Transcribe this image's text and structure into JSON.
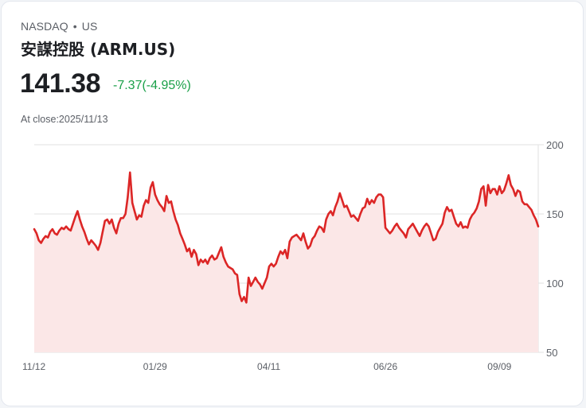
{
  "header": {
    "exchange": "NASDAQ",
    "separator": "•",
    "region": "US",
    "title": "安謀控股 (ARM.US)"
  },
  "quote": {
    "price": "141.38",
    "change": "-7.37(-4.95%)",
    "change_color": "#1aa049",
    "close_label": "At close:2025/11/13"
  },
  "colors": {
    "line": "#dc2626",
    "fill": "#fbe7e7",
    "grid": "#e2e2e2"
  },
  "chart_data": {
    "type": "area",
    "title": "ARM.US 1Y price",
    "xlabel": "",
    "ylabel": "",
    "ylim": [
      50,
      200
    ],
    "yticks": [
      200,
      150,
      100,
      50
    ],
    "xtick_labels": [
      "11/12",
      "01/29",
      "04/11",
      "06/26",
      "09/09"
    ],
    "xtick_index": [
      0,
      53,
      103,
      154,
      204
    ],
    "grid": true,
    "legend": "none",
    "series": [
      {
        "name": "ARM.US",
        "values": [
          139,
          136,
          131,
          129,
          132,
          134,
          133,
          137,
          139,
          136,
          135,
          138,
          140,
          139,
          141,
          139,
          138,
          143,
          148,
          152,
          146,
          141,
          137,
          132,
          128,
          131,
          129,
          127,
          124,
          129,
          137,
          145,
          146,
          143,
          146,
          140,
          136,
          143,
          147,
          147,
          150,
          162,
          180,
          158,
          152,
          146,
          149,
          148,
          156,
          160,
          158,
          169,
          173,
          164,
          160,
          157,
          155,
          152,
          163,
          158,
          159,
          152,
          146,
          142,
          136,
          132,
          128,
          123,
          125,
          119,
          124,
          121,
          113,
          117,
          115,
          117,
          114,
          118,
          120,
          117,
          118,
          122,
          126,
          119,
          115,
          112,
          111,
          110,
          107,
          106,
          92,
          87,
          90,
          86,
          104,
          98,
          101,
          104,
          101,
          99,
          96,
          100,
          104,
          112,
          114,
          112,
          114,
          119,
          123,
          121,
          124,
          118,
          130,
          133,
          134,
          135,
          133,
          131,
          136,
          130,
          125,
          127,
          132,
          134,
          138,
          141,
          140,
          137,
          146,
          150,
          152,
          149,
          155,
          159,
          165,
          160,
          155,
          156,
          152,
          148,
          149,
          147,
          145,
          150,
          154,
          155,
          161,
          157,
          160,
          158,
          162,
          164,
          164,
          162,
          140,
          138,
          136,
          138,
          141,
          143,
          140,
          138,
          136,
          133,
          139,
          141,
          143,
          140,
          137,
          134,
          138,
          141,
          143,
          141,
          136,
          131,
          132,
          137,
          140,
          143,
          151,
          155,
          152,
          153,
          148,
          143,
          141,
          144,
          140,
          141,
          140,
          146,
          149,
          151,
          154,
          159,
          168,
          170,
          156,
          171,
          165,
          168,
          168,
          164,
          170,
          165,
          167,
          172,
          178,
          171,
          168,
          163,
          167,
          166,
          159,
          157,
          157,
          155,
          153,
          149,
          146,
          141
        ]
      }
    ]
  }
}
